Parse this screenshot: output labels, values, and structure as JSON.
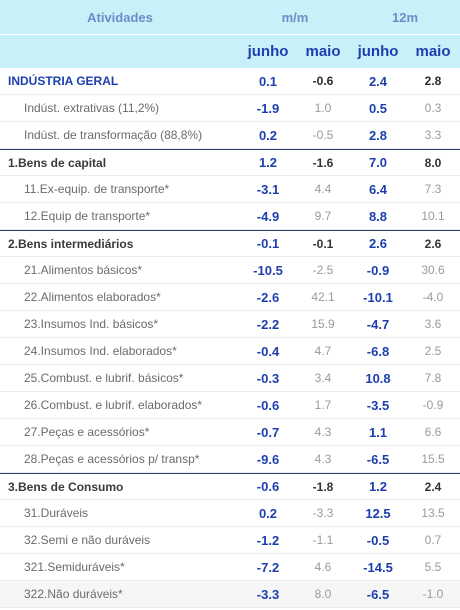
{
  "header": {
    "col_atividades": "Atividades",
    "col_mm": "m/m",
    "col_12m": "12m",
    "sub_junho_1": "junho",
    "sub_maio_1": "maio",
    "sub_junho_2": "junho",
    "sub_maio_2": "maio"
  },
  "rows": [
    {
      "label": "INDÚSTRIA GERAL",
      "mm_jun": "0.1",
      "mm_mai": "-0.6",
      "a12_jun": "2.4",
      "a12_mai": "2.8"
    },
    {
      "label": "Indúst. extrativas (11,2%)",
      "mm_jun": "-1.9",
      "mm_mai": "1.0",
      "a12_jun": "0.5",
      "a12_mai": "0.3"
    },
    {
      "label": "Indúst. de transformação (88,8%)",
      "mm_jun": "0.2",
      "mm_mai": "-0.5",
      "a12_jun": "2.8",
      "a12_mai": "3.3"
    },
    {
      "label": "1.Bens de capital",
      "mm_jun": "1.2",
      "mm_mai": "-1.6",
      "a12_jun": "7.0",
      "a12_mai": "8.0"
    },
    {
      "label": "11.Ex-equip. de transporte*",
      "mm_jun": "-3.1",
      "mm_mai": "4.4",
      "a12_jun": "6.4",
      "a12_mai": "7.3"
    },
    {
      "label": "12.Equip de transporte*",
      "mm_jun": "-4.9",
      "mm_mai": "9.7",
      "a12_jun": "8.8",
      "a12_mai": "10.1"
    },
    {
      "label": "2.Bens intermediários",
      "mm_jun": "-0.1",
      "mm_mai": "-0.1",
      "a12_jun": "2.6",
      "a12_mai": "2.6"
    },
    {
      "label": "21.Alimentos básicos*",
      "mm_jun": "-10.5",
      "mm_mai": "-2.5",
      "a12_jun": "-0.9",
      "a12_mai": "30.6"
    },
    {
      "label": "22.Alimentos elaborados*",
      "mm_jun": "-2.6",
      "mm_mai": "42.1",
      "a12_jun": "-10.1",
      "a12_mai": "-4.0"
    },
    {
      "label": "23.Insumos Ind. básicos*",
      "mm_jun": "-2.2",
      "mm_mai": "15.9",
      "a12_jun": "-4.7",
      "a12_mai": "3.6"
    },
    {
      "label": "24.Insumos Ind. elaborados*",
      "mm_jun": "-0.4",
      "mm_mai": "4.7",
      "a12_jun": "-6.8",
      "a12_mai": "2.5"
    },
    {
      "label": "25.Combust. e lubrif. básicos*",
      "mm_jun": "-0.3",
      "mm_mai": "3.4",
      "a12_jun": "10.8",
      "a12_mai": "7.8"
    },
    {
      "label": "26.Combust. e lubrif. elaborados*",
      "mm_jun": "-0.6",
      "mm_mai": "1.7",
      "a12_jun": "-3.5",
      "a12_mai": "-0.9"
    },
    {
      "label": "27.Peças e acessórios*",
      "mm_jun": "-0.7",
      "mm_mai": "4.3",
      "a12_jun": "1.1",
      "a12_mai": "6.6"
    },
    {
      "label": "28.Peças e acessórios p/ transp*",
      "mm_jun": "-9.6",
      "mm_mai": "4.3",
      "a12_jun": "-6.5",
      "a12_mai": "15.5"
    },
    {
      "label": "3.Bens de Consumo",
      "mm_jun": "-0.6",
      "mm_mai": "-1.8",
      "a12_jun": "1.2",
      "a12_mai": "2.4"
    },
    {
      "label": "31.Duráveis",
      "mm_jun": "0.2",
      "mm_mai": "-3.3",
      "a12_jun": "12.5",
      "a12_mai": "13.5"
    },
    {
      "label": "32.Semi e não duráveis",
      "mm_jun": "-1.2",
      "mm_mai": "-1.1",
      "a12_jun": "-0.5",
      "a12_mai": "0.7"
    },
    {
      "label": "321.Semiduráveis*",
      "mm_jun": "-7.2",
      "mm_mai": "4.6",
      "a12_jun": "-14.5",
      "a12_mai": "5.5"
    },
    {
      "label": "322.Não duráveis*",
      "mm_jun": "-3.3",
      "mm_mai": "8.0",
      "a12_jun": "-6.5",
      "a12_mai": "-1.0"
    }
  ]
}
